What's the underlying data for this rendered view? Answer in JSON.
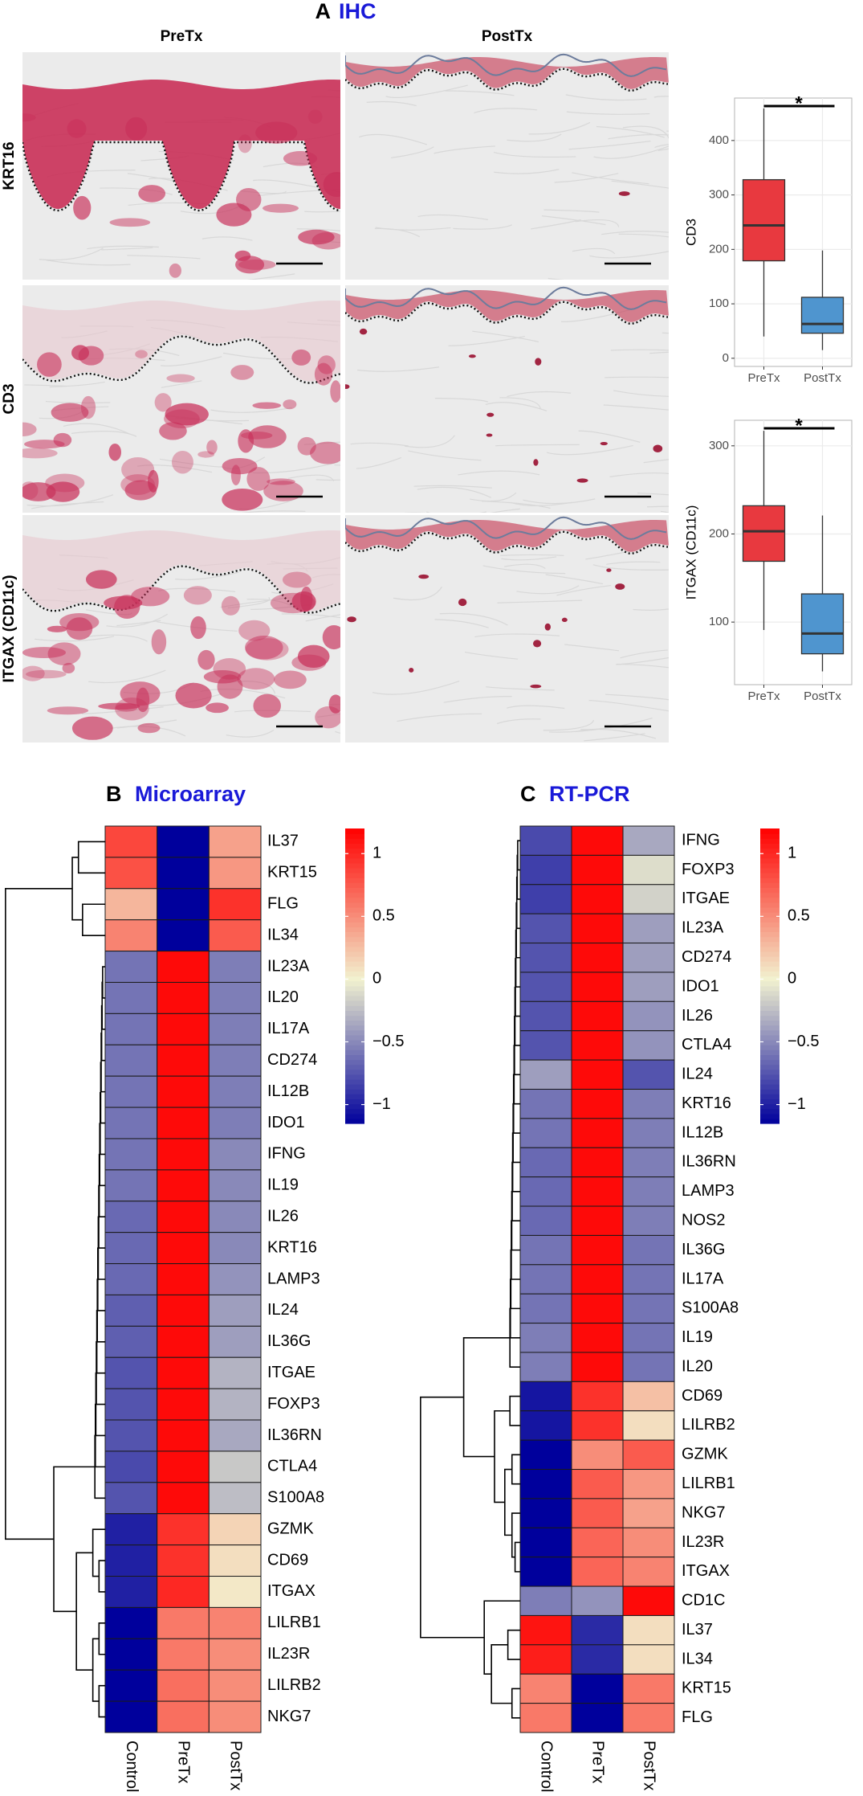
{
  "panel_a": {
    "letter": "A",
    "title": "IHC",
    "columns": [
      "PreTx",
      "PostTx"
    ],
    "rows": [
      "KRT16",
      "CD3",
      "ITGAX (CD11c)"
    ],
    "boxplots": [
      {
        "type": "box",
        "ylabel": "CD3",
        "categories": [
          "PreTx",
          "PostTx"
        ],
        "colors": [
          "#e8393f",
          "#4f95cf"
        ],
        "ylim": [
          -15,
          478
        ],
        "yticks": [
          0,
          100,
          200,
          300,
          400
        ],
        "grid": true,
        "significance": "*",
        "stats": [
          {
            "min": 40,
            "q1": 179,
            "median": 244,
            "q3": 328,
            "max": 459
          },
          {
            "min": 15,
            "q1": 46,
            "median": 63,
            "q3": 112,
            "max": 198
          }
        ]
      },
      {
        "type": "box",
        "ylabel": "ITGAX (CD11c)",
        "categories": [
          "PreTx",
          "PostTx"
        ],
        "colors": [
          "#e8393f",
          "#4f95cf"
        ],
        "ylim": [
          29,
          329
        ],
        "yticks": [
          100,
          200,
          300
        ],
        "grid": true,
        "significance": "*",
        "stats": [
          {
            "min": 91,
            "q1": 169,
            "median": 203,
            "q3": 232,
            "max": 317
          },
          {
            "min": 44,
            "q1": 64,
            "median": 87,
            "q3": 132,
            "max": 221
          }
        ]
      }
    ]
  },
  "heatmaps": [
    {
      "type": "heatmap",
      "letter": "B",
      "title": "Microarray",
      "column_labels": [
        "Control",
        "PreTx",
        "PostTx"
      ],
      "clim": [
        -1.15,
        1.2
      ],
      "color_stops": [
        {
          "value": -1.15,
          "color": "#00009c"
        },
        {
          "value": 0,
          "color": "#f2f2d0"
        },
        {
          "value": 1.2,
          "color": "#ff0000"
        }
      ],
      "colorbar_ticks": [
        1,
        0.5,
        0,
        {
          "value": -0.5,
          "label": "−0.5"
        },
        {
          "value": -1,
          "label": "−1"
        }
      ],
      "row_labels": [
        "IL37",
        "KRT15",
        "FLG",
        "IL34",
        "IL23A",
        "IL20",
        "IL17A",
        "CD274",
        "IL12B",
        "IDO1",
        "IFNG",
        "IL19",
        "IL26",
        "KRT16",
        "LAMP3",
        "IL24",
        "IL36G",
        "ITGAE",
        "FOXP3",
        "IL36RN",
        "CTLA4",
        "S100A8",
        "GZMK",
        "CD69",
        "ITGAX",
        "LILRB1",
        "IL23R",
        "LILRB2",
        "NKG7"
      ],
      "values": [
        [
          0.85,
          -1.15,
          0.4
        ],
        [
          0.8,
          -1.15,
          0.45
        ],
        [
          0.3,
          -1.15,
          0.95
        ],
        [
          0.55,
          -1.15,
          0.75
        ],
        [
          -0.6,
          1.15,
          -0.55
        ],
        [
          -0.6,
          1.15,
          -0.55
        ],
        [
          -0.6,
          1.15,
          -0.55
        ],
        [
          -0.6,
          1.15,
          -0.55
        ],
        [
          -0.6,
          1.15,
          -0.55
        ],
        [
          -0.6,
          1.15,
          -0.55
        ],
        [
          -0.6,
          1.15,
          -0.5
        ],
        [
          -0.6,
          1.15,
          -0.5
        ],
        [
          -0.65,
          1.15,
          -0.5
        ],
        [
          -0.65,
          1.15,
          -0.5
        ],
        [
          -0.65,
          1.15,
          -0.45
        ],
        [
          -0.7,
          1.15,
          -0.4
        ],
        [
          -0.7,
          1.15,
          -0.4
        ],
        [
          -0.75,
          1.15,
          -0.3
        ],
        [
          -0.75,
          1.15,
          -0.3
        ],
        [
          -0.75,
          1.15,
          -0.35
        ],
        [
          -0.8,
          1.15,
          -0.2
        ],
        [
          -0.75,
          1.15,
          -0.25
        ],
        [
          -1.0,
          0.95,
          0.15
        ],
        [
          -1.0,
          0.95,
          0.1
        ],
        [
          -1.0,
          1.0,
          0.05
        ],
        [
          -1.15,
          0.6,
          0.55
        ],
        [
          -1.15,
          0.6,
          0.5
        ],
        [
          -1.15,
          0.65,
          0.5
        ],
        [
          -1.15,
          0.65,
          0.5
        ]
      ]
    },
    {
      "type": "heatmap",
      "letter": "C",
      "title": "RT-PCR",
      "column_labels": [
        "Control",
        "PreTx",
        "PostTx"
      ],
      "clim": [
        -1.15,
        1.2
      ],
      "color_stops": [
        {
          "value": -1.15,
          "color": "#00009c"
        },
        {
          "value": 0,
          "color": "#f2f2d0"
        },
        {
          "value": 1.2,
          "color": "#ff0000"
        }
      ],
      "colorbar_ticks": [
        1,
        0.5,
        0,
        {
          "value": -0.5,
          "label": "−0.5"
        },
        {
          "value": -1,
          "label": "−1"
        }
      ],
      "row_labels": [
        "IFNG",
        "FOXP3",
        "ITGAE",
        "IL23A",
        "CD274",
        "IDO1",
        "IL26",
        "CTLA4",
        "IL24",
        "KRT16",
        "IL12B",
        "IL36RN",
        "LAMP3",
        "NOS2",
        "IL36G",
        "IL17A",
        "S100A8",
        "IL19",
        "IL20",
        "CD69",
        "LILRB2",
        "GZMK",
        "LILRB1",
        "NKG7",
        "IL23R",
        "ITGAX",
        "CD1C",
        "IL37",
        "IL34",
        "KRT15",
        "FLG"
      ],
      "values": [
        [
          -0.8,
          1.15,
          -0.35
        ],
        [
          -0.85,
          1.15,
          -0.1
        ],
        [
          -0.85,
          1.15,
          -0.15
        ],
        [
          -0.75,
          1.15,
          -0.4
        ],
        [
          -0.75,
          1.15,
          -0.4
        ],
        [
          -0.75,
          1.15,
          -0.4
        ],
        [
          -0.75,
          1.15,
          -0.45
        ],
        [
          -0.75,
          1.15,
          -0.45
        ],
        [
          -0.4,
          1.15,
          -0.75
        ],
        [
          -0.6,
          1.15,
          -0.55
        ],
        [
          -0.6,
          1.15,
          -0.55
        ],
        [
          -0.65,
          1.15,
          -0.55
        ],
        [
          -0.65,
          1.15,
          -0.55
        ],
        [
          -0.65,
          1.15,
          -0.55
        ],
        [
          -0.6,
          1.15,
          -0.6
        ],
        [
          -0.6,
          1.15,
          -0.6
        ],
        [
          -0.6,
          1.15,
          -0.6
        ],
        [
          -0.55,
          1.15,
          -0.6
        ],
        [
          -0.55,
          1.15,
          -0.6
        ],
        [
          -1.05,
          0.95,
          0.25
        ],
        [
          -1.05,
          0.95,
          0.1
        ],
        [
          -1.15,
          0.5,
          0.75
        ],
        [
          -1.15,
          0.75,
          0.45
        ],
        [
          -1.15,
          0.75,
          0.4
        ],
        [
          -1.15,
          0.7,
          0.5
        ],
        [
          -1.15,
          0.7,
          0.55
        ],
        [
          -0.55,
          -0.45,
          1.15
        ],
        [
          1.1,
          -0.95,
          0.1
        ],
        [
          1.05,
          -0.95,
          0.1
        ],
        [
          0.55,
          -1.15,
          0.6
        ],
        [
          0.6,
          -1.15,
          0.6
        ]
      ]
    }
  ]
}
